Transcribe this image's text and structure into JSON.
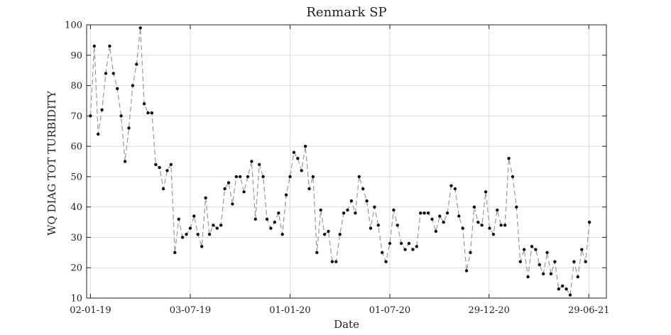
{
  "chart_data": {
    "type": "line",
    "title": "Renmark SP",
    "xlabel": "Date",
    "ylabel": "WQ DIAG TOT TURBIDITY",
    "ylim": [
      10,
      100
    ],
    "xlim": [
      "2018-12-26",
      "2021-07-31"
    ],
    "yticks": [
      10,
      20,
      30,
      40,
      50,
      60,
      70,
      80,
      90,
      100
    ],
    "xticks": [
      {
        "date": "2019-01-02",
        "label": "02-01-19"
      },
      {
        "date": "2019-07-03",
        "label": "03-07-19"
      },
      {
        "date": "2020-01-01",
        "label": "01-01-20"
      },
      {
        "date": "2020-07-01",
        "label": "01-07-20"
      },
      {
        "date": "2020-12-29",
        "label": "29-12-20"
      },
      {
        "date": "2021-06-29",
        "label": "29-06-21"
      }
    ],
    "grid": true,
    "series_style": {
      "line": "dashed",
      "line_color": "#999999",
      "marker_color": "#111111"
    },
    "points": [
      [
        "2019-01-02",
        70
      ],
      [
        "2019-01-09",
        93
      ],
      [
        "2019-01-16",
        64
      ],
      [
        "2019-01-23",
        72
      ],
      [
        "2019-01-30",
        84
      ],
      [
        "2019-02-06",
        93
      ],
      [
        "2019-02-13",
        84
      ],
      [
        "2019-02-20",
        79
      ],
      [
        "2019-02-27",
        70
      ],
      [
        "2019-03-06",
        55
      ],
      [
        "2019-03-13",
        66
      ],
      [
        "2019-03-20",
        80
      ],
      [
        "2019-03-27",
        87
      ],
      [
        "2019-04-03",
        99
      ],
      [
        "2019-04-10",
        74
      ],
      [
        "2019-04-17",
        71
      ],
      [
        "2019-04-24",
        71
      ],
      [
        "2019-05-01",
        54
      ],
      [
        "2019-05-08",
        53
      ],
      [
        "2019-05-15",
        46
      ],
      [
        "2019-05-22",
        52
      ],
      [
        "2019-05-29",
        54
      ],
      [
        "2019-06-05",
        25
      ],
      [
        "2019-06-12",
        36
      ],
      [
        "2019-06-19",
        30
      ],
      [
        "2019-06-26",
        31
      ],
      [
        "2019-07-03",
        33
      ],
      [
        "2019-07-10",
        37
      ],
      [
        "2019-07-17",
        31
      ],
      [
        "2019-07-24",
        27
      ],
      [
        "2019-07-31",
        43
      ],
      [
        "2019-08-07",
        31
      ],
      [
        "2019-08-14",
        34
      ],
      [
        "2019-08-21",
        33
      ],
      [
        "2019-08-28",
        34
      ],
      [
        "2019-09-04",
        46
      ],
      [
        "2019-09-11",
        48
      ],
      [
        "2019-09-18",
        41
      ],
      [
        "2019-09-25",
        50
      ],
      [
        "2019-10-02",
        50
      ],
      [
        "2019-10-09",
        45
      ],
      [
        "2019-10-16",
        50
      ],
      [
        "2019-10-23",
        55
      ],
      [
        "2019-10-30",
        36
      ],
      [
        "2019-11-06",
        54
      ],
      [
        "2019-11-13",
        50
      ],
      [
        "2019-11-20",
        36
      ],
      [
        "2019-11-27",
        33
      ],
      [
        "2019-12-04",
        35
      ],
      [
        "2019-12-11",
        38
      ],
      [
        "2019-12-18",
        31
      ],
      [
        "2019-12-25",
        44
      ],
      [
        "2020-01-01",
        50
      ],
      [
        "2020-01-08",
        58
      ],
      [
        "2020-01-15",
        56
      ],
      [
        "2020-01-22",
        52
      ],
      [
        "2020-01-29",
        60
      ],
      [
        "2020-02-05",
        46
      ],
      [
        "2020-02-12",
        50
      ],
      [
        "2020-02-19",
        25
      ],
      [
        "2020-02-26",
        39
      ],
      [
        "2020-03-04",
        31
      ],
      [
        "2020-03-11",
        32
      ],
      [
        "2020-03-18",
        22
      ],
      [
        "2020-03-25",
        22
      ],
      [
        "2020-04-01",
        31
      ],
      [
        "2020-04-08",
        38
      ],
      [
        "2020-04-15",
        39
      ],
      [
        "2020-04-22",
        42
      ],
      [
        "2020-04-29",
        38
      ],
      [
        "2020-05-06",
        50
      ],
      [
        "2020-05-13",
        46
      ],
      [
        "2020-05-20",
        42
      ],
      [
        "2020-05-27",
        33
      ],
      [
        "2020-06-03",
        40
      ],
      [
        "2020-06-10",
        34
      ],
      [
        "2020-06-17",
        25
      ],
      [
        "2020-06-24",
        22
      ],
      [
        "2020-07-01",
        28
      ],
      [
        "2020-07-08",
        39
      ],
      [
        "2020-07-15",
        34
      ],
      [
        "2020-07-22",
        28
      ],
      [
        "2020-07-29",
        26
      ],
      [
        "2020-08-05",
        28
      ],
      [
        "2020-08-12",
        26
      ],
      [
        "2020-08-19",
        27
      ],
      [
        "2020-08-26",
        38
      ],
      [
        "2020-09-02",
        38
      ],
      [
        "2020-09-09",
        38
      ],
      [
        "2020-09-16",
        36
      ],
      [
        "2020-09-23",
        32
      ],
      [
        "2020-09-30",
        37
      ],
      [
        "2020-10-07",
        35
      ],
      [
        "2020-10-14",
        38
      ],
      [
        "2020-10-21",
        47
      ],
      [
        "2020-10-28",
        46
      ],
      [
        "2020-11-04",
        37
      ],
      [
        "2020-11-11",
        33
      ],
      [
        "2020-11-18",
        19
      ],
      [
        "2020-11-25",
        25
      ],
      [
        "2020-12-02",
        40
      ],
      [
        "2020-12-09",
        35
      ],
      [
        "2020-12-16",
        34
      ],
      [
        "2020-12-23",
        45
      ],
      [
        "2020-12-30",
        33
      ],
      [
        "2021-01-06",
        31
      ],
      [
        "2021-01-13",
        39
      ],
      [
        "2021-01-20",
        34
      ],
      [
        "2021-01-27",
        34
      ],
      [
        "2021-02-03",
        56
      ],
      [
        "2021-02-10",
        50
      ],
      [
        "2021-02-17",
        40
      ],
      [
        "2021-02-24",
        22
      ],
      [
        "2021-03-03",
        26
      ],
      [
        "2021-03-10",
        17
      ],
      [
        "2021-03-17",
        27
      ],
      [
        "2021-03-24",
        26
      ],
      [
        "2021-03-31",
        21
      ],
      [
        "2021-04-07",
        18
      ],
      [
        "2021-04-14",
        25
      ],
      [
        "2021-04-21",
        18
      ],
      [
        "2021-04-28",
        22
      ],
      [
        "2021-05-05",
        13
      ],
      [
        "2021-05-12",
        14
      ],
      [
        "2021-05-19",
        13
      ],
      [
        "2021-05-26",
        11
      ],
      [
        "2021-06-02",
        22
      ],
      [
        "2021-06-09",
        17
      ],
      [
        "2021-06-16",
        26
      ],
      [
        "2021-06-23",
        22
      ],
      [
        "2021-06-30",
        35
      ]
    ]
  }
}
